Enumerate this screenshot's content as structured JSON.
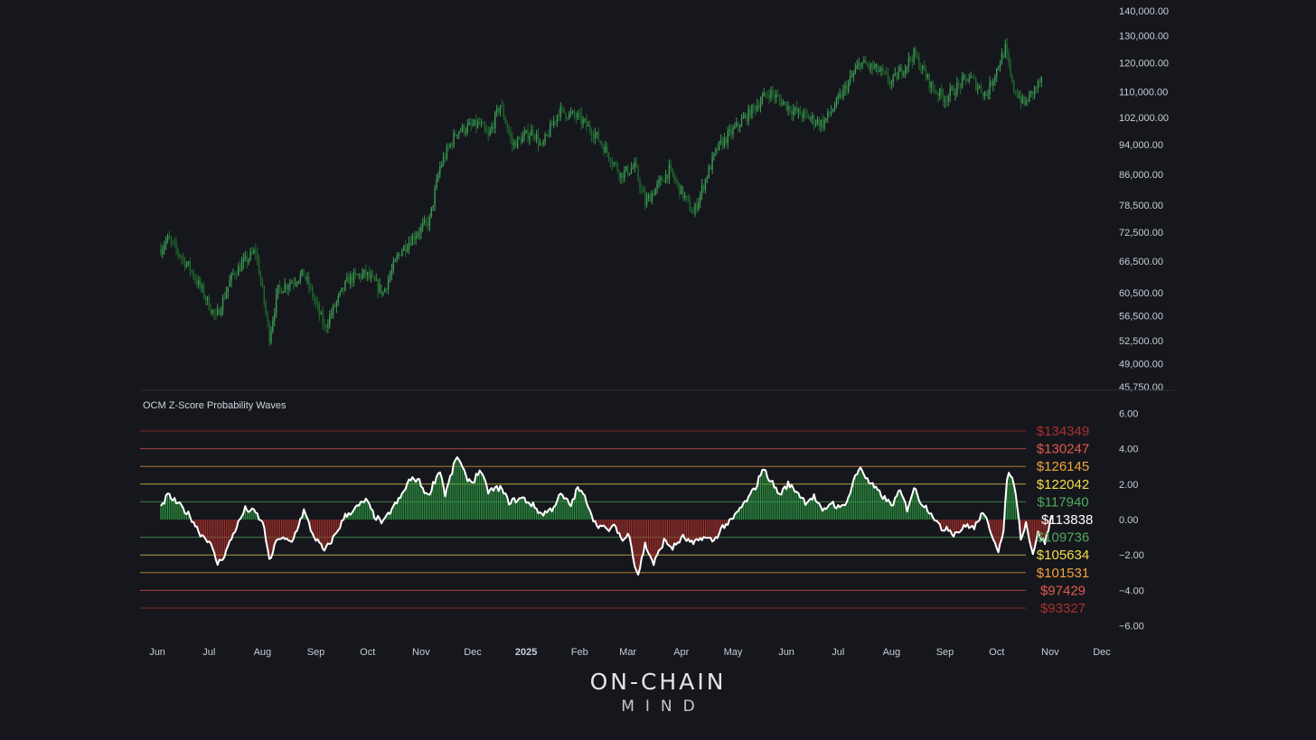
{
  "panel_title": "OCM Z-Score Probability Waves",
  "logo": {
    "line1": "ON-CHAIN",
    "line2": "MIND"
  },
  "colors": {
    "background": "#16171d",
    "candle_up": "#3d9b56",
    "candle_down": "#1f6a2c",
    "zscore_pos": "#2ea043",
    "zscore_neg": "#b3312a",
    "zscore_line": "#ffffff"
  },
  "chart_data": [
    {
      "type": "candlestick",
      "y_scale": "log",
      "ylim": [
        45750,
        140000
      ],
      "y_ticks": [
        "140,000.00",
        "130,000.00",
        "120,000.00",
        "110,000.00",
        "102,000.00",
        "94,000.00",
        "86,000.00",
        "78,500.00",
        "72,500.00",
        "66,500.00",
        "60,500.00",
        "56,500.00",
        "52,500.00",
        "49,000.00",
        "45,750.00"
      ],
      "x_range": [
        "2024-06-03",
        "2025-12-28"
      ],
      "approx_close_path": [
        [
          "2024-06-03",
          69000
        ],
        [
          "2024-06-07",
          71000
        ],
        [
          "2024-06-20",
          65000
        ],
        [
          "2024-07-05",
          56000
        ],
        [
          "2024-07-15",
          64000
        ],
        [
          "2024-07-28",
          68500
        ],
        [
          "2024-08-05",
          53000
        ],
        [
          "2024-08-10",
          61000
        ],
        [
          "2024-08-25",
          64000
        ],
        [
          "2024-09-06",
          54500
        ],
        [
          "2024-09-20",
          63000
        ],
        [
          "2024-09-30",
          64000
        ],
        [
          "2024-10-10",
          60500
        ],
        [
          "2024-10-20",
          68500
        ],
        [
          "2024-10-30",
          72500
        ],
        [
          "2024-11-06",
          75000
        ],
        [
          "2024-11-12",
          88000
        ],
        [
          "2024-11-22",
          98000
        ],
        [
          "2024-12-05",
          100000
        ],
        [
          "2024-12-10",
          96000
        ],
        [
          "2024-12-17",
          106000
        ],
        [
          "2024-12-24",
          94000
        ],
        [
          "2025-01-05",
          98000
        ],
        [
          "2025-01-10",
          93000
        ],
        [
          "2025-01-20",
          104000
        ],
        [
          "2025-01-31",
          102000
        ],
        [
          "2025-02-10",
          97000
        ],
        [
          "2025-02-25",
          86000
        ],
        [
          "2025-03-05",
          88000
        ],
        [
          "2025-03-11",
          79000
        ],
        [
          "2025-03-25",
          87000
        ],
        [
          "2025-04-08",
          76500
        ],
        [
          "2025-04-22",
          93000
        ],
        [
          "2025-05-10",
          103000
        ],
        [
          "2025-05-22",
          110000
        ],
        [
          "2025-06-05",
          104000
        ],
        [
          "2025-06-22",
          100000
        ],
        [
          "2025-07-01",
          107000
        ],
        [
          "2025-07-14",
          120000
        ],
        [
          "2025-07-25",
          117000
        ],
        [
          "2025-08-01",
          113000
        ],
        [
          "2025-08-14",
          123000
        ],
        [
          "2025-08-25",
          111000
        ],
        [
          "2025-09-01",
          108000
        ],
        [
          "2025-09-15",
          115000
        ],
        [
          "2025-09-25",
          109000
        ],
        [
          "2025-10-06",
          125000
        ],
        [
          "2025-10-10",
          112000
        ],
        [
          "2025-10-17",
          106000
        ],
        [
          "2025-10-27",
          114000
        ]
      ]
    },
    {
      "type": "area",
      "title": "OCM Z-Score Probability Waves",
      "ylim": [
        -6,
        6
      ],
      "y_ticks": [
        "6.00",
        "4.00",
        "2.00",
        "0.00",
        "−2.00",
        "−4.00",
        "−6.00"
      ],
      "x_ticks": [
        {
          "label": "Jun",
          "date": "2024-06-01",
          "bold": false
        },
        {
          "label": "Jul",
          "date": "2024-07-01",
          "bold": false
        },
        {
          "label": "Aug",
          "date": "2024-08-01",
          "bold": false
        },
        {
          "label": "Sep",
          "date": "2024-09-01",
          "bold": false
        },
        {
          "label": "Oct",
          "date": "2024-10-01",
          "bold": false
        },
        {
          "label": "Nov",
          "date": "2024-11-01",
          "bold": false
        },
        {
          "label": "Dec",
          "date": "2024-12-01",
          "bold": false
        },
        {
          "label": "2025",
          "date": "2025-01-01",
          "bold": true
        },
        {
          "label": "Feb",
          "date": "2025-02-01",
          "bold": false
        },
        {
          "label": "Mar",
          "date": "2025-03-01",
          "bold": false
        },
        {
          "label": "Apr",
          "date": "2025-04-01",
          "bold": false
        },
        {
          "label": "May",
          "date": "2025-05-01",
          "bold": false
        },
        {
          "label": "Jun",
          "date": "2025-06-01",
          "bold": false
        },
        {
          "label": "Jul",
          "date": "2025-07-01",
          "bold": false
        },
        {
          "label": "Aug",
          "date": "2025-08-01",
          "bold": false
        },
        {
          "label": "Sep",
          "date": "2025-09-01",
          "bold": false
        },
        {
          "label": "Oct",
          "date": "2025-10-01",
          "bold": false
        },
        {
          "label": "Nov",
          "date": "2025-11-01",
          "bold": false
        },
        {
          "label": "Dec",
          "date": "2025-12-01",
          "bold": false
        }
      ],
      "levels": [
        {
          "z": 5,
          "label": "$134349",
          "color": "#a8302c"
        },
        {
          "z": 4,
          "label": "$130247",
          "color": "#e2584d"
        },
        {
          "z": 3,
          "label": "$126145",
          "color": "#f0a33a"
        },
        {
          "z": 2,
          "label": "$122042",
          "color": "#f3dd4e"
        },
        {
          "z": 1,
          "label": "$117940",
          "color": "#4fa85a"
        },
        {
          "z": 0,
          "label": "$113838",
          "color": "#ffffff"
        },
        {
          "z": -1,
          "label": "$109736",
          "color": "#4fa85a"
        },
        {
          "z": -2,
          "label": "$105634",
          "color": "#f3dd4e"
        },
        {
          "z": -3,
          "label": "$101531",
          "color": "#f0a33a"
        },
        {
          "z": -4,
          "label": "$97429",
          "color": "#e2584d"
        },
        {
          "z": -5,
          "label": "$93327",
          "color": "#a8302c"
        }
      ],
      "series": [
        {
          "values": [
            [
              "2024-06-03",
              0.6
            ],
            [
              "2024-06-07",
              1.4
            ],
            [
              "2024-06-14",
              0.8
            ],
            [
              "2024-06-20",
              0.2
            ],
            [
              "2024-06-26",
              -0.8
            ],
            [
              "2024-07-01",
              -1.2
            ],
            [
              "2024-07-06",
              -2.5
            ],
            [
              "2024-07-10",
              -2.0
            ],
            [
              "2024-07-16",
              -0.6
            ],
            [
              "2024-07-22",
              0.6
            ],
            [
              "2024-07-28",
              0.4
            ],
            [
              "2024-08-02",
              -0.4
            ],
            [
              "2024-08-05",
              -2.4
            ],
            [
              "2024-08-10",
              -1.0
            ],
            [
              "2024-08-18",
              -1.3
            ],
            [
              "2024-08-25",
              0.5
            ],
            [
              "2024-08-30",
              -0.8
            ],
            [
              "2024-09-06",
              -1.8
            ],
            [
              "2024-09-12",
              -0.9
            ],
            [
              "2024-09-18",
              0.2
            ],
            [
              "2024-09-25",
              0.7
            ],
            [
              "2024-09-30",
              1.1
            ],
            [
              "2024-10-05",
              0.2
            ],
            [
              "2024-10-10",
              -0.2
            ],
            [
              "2024-10-15",
              0.6
            ],
            [
              "2024-10-20",
              1.2
            ],
            [
              "2024-10-25",
              2.2
            ],
            [
              "2024-10-30",
              2.3
            ],
            [
              "2024-11-05",
              1.3
            ],
            [
              "2024-11-08",
              2.0
            ],
            [
              "2024-11-12",
              2.8
            ],
            [
              "2024-11-15",
              1.4
            ],
            [
              "2024-11-20",
              3.0
            ],
            [
              "2024-11-22",
              3.6
            ],
            [
              "2024-11-27",
              2.4
            ],
            [
              "2024-12-01",
              2.1
            ],
            [
              "2024-12-05",
              2.8
            ],
            [
              "2024-12-10",
              1.6
            ],
            [
              "2024-12-17",
              1.8
            ],
            [
              "2024-12-22",
              1.0
            ],
            [
              "2024-12-30",
              1.2
            ],
            [
              "2025-01-05",
              0.8
            ],
            [
              "2025-01-10",
              0.3
            ],
            [
              "2025-01-16",
              0.6
            ],
            [
              "2025-01-21",
              1.4
            ],
            [
              "2025-01-27",
              0.8
            ],
            [
              "2025-01-31",
              1.8
            ],
            [
              "2025-02-05",
              1.1
            ],
            [
              "2025-02-10",
              -0.2
            ],
            [
              "2025-02-17",
              -0.6
            ],
            [
              "2025-02-22",
              -0.4
            ],
            [
              "2025-02-26",
              -1.2
            ],
            [
              "2025-03-02",
              -0.8
            ],
            [
              "2025-03-05",
              -2.6
            ],
            [
              "2025-03-07",
              -3.1
            ],
            [
              "2025-03-11",
              -1.4
            ],
            [
              "2025-03-16",
              -2.5
            ],
            [
              "2025-03-22",
              -1.2
            ],
            [
              "2025-03-27",
              -1.6
            ],
            [
              "2025-04-02",
              -1.0
            ],
            [
              "2025-04-08",
              -1.4
            ],
            [
              "2025-04-13",
              -1.0
            ],
            [
              "2025-04-20",
              -1.2
            ],
            [
              "2025-04-25",
              -0.4
            ],
            [
              "2025-04-30",
              -0.1
            ],
            [
              "2025-05-05",
              0.6
            ],
            [
              "2025-05-10",
              1.2
            ],
            [
              "2025-05-15",
              2.0
            ],
            [
              "2025-05-18",
              2.9
            ],
            [
              "2025-05-23",
              2.2
            ],
            [
              "2025-05-28",
              1.4
            ],
            [
              "2025-06-02",
              2.0
            ],
            [
              "2025-06-07",
              1.6
            ],
            [
              "2025-06-12",
              1.0
            ],
            [
              "2025-06-17",
              1.3
            ],
            [
              "2025-06-22",
              0.4
            ],
            [
              "2025-06-27",
              1.0
            ],
            [
              "2025-07-02",
              0.6
            ],
            [
              "2025-07-07",
              1.2
            ],
            [
              "2025-07-10",
              2.2
            ],
            [
              "2025-07-14",
              3.0
            ],
            [
              "2025-07-18",
              2.2
            ],
            [
              "2025-07-24",
              1.6
            ],
            [
              "2025-08-01",
              0.8
            ],
            [
              "2025-08-06",
              1.6
            ],
            [
              "2025-08-10",
              0.6
            ],
            [
              "2025-08-14",
              1.8
            ],
            [
              "2025-08-18",
              1.0
            ],
            [
              "2025-08-24",
              0.4
            ],
            [
              "2025-08-30",
              -0.6
            ],
            [
              "2025-09-02",
              -0.4
            ],
            [
              "2025-09-06",
              -0.8
            ],
            [
              "2025-09-10",
              -0.6
            ],
            [
              "2025-09-14",
              -0.3
            ],
            [
              "2025-09-18",
              -0.5
            ],
            [
              "2025-09-22",
              0.3
            ],
            [
              "2025-09-25",
              0.0
            ],
            [
              "2025-09-29",
              -1.0
            ],
            [
              "2025-10-02",
              -1.7
            ],
            [
              "2025-10-05",
              -0.8
            ],
            [
              "2025-10-07",
              2.4
            ],
            [
              "2025-10-09",
              2.6
            ],
            [
              "2025-10-12",
              1.6
            ],
            [
              "2025-10-15",
              -1.0
            ],
            [
              "2025-10-18",
              -0.2
            ],
            [
              "2025-10-22",
              -1.9
            ],
            [
              "2025-10-25",
              -0.8
            ],
            [
              "2025-10-29",
              -1.3
            ],
            [
              "2025-11-02",
              0.2
            ]
          ]
        }
      ]
    }
  ]
}
